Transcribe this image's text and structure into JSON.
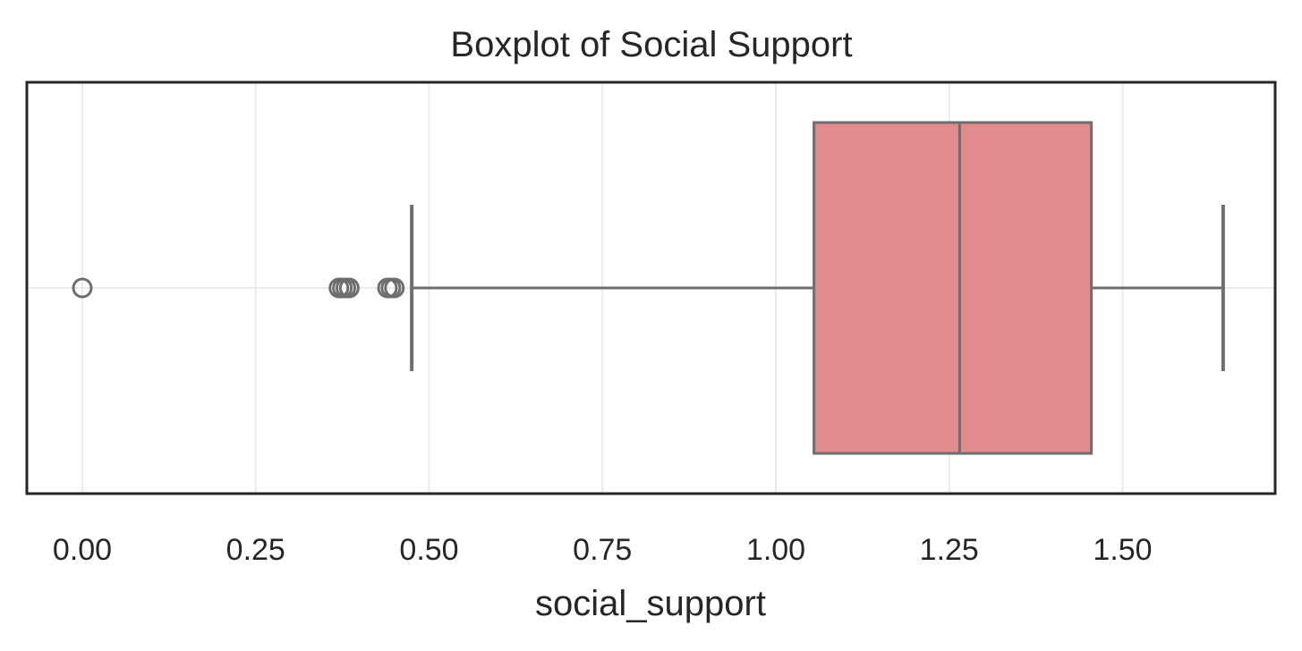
{
  "chart_data": {
    "type": "boxplot",
    "title": "Boxplot of Social Support",
    "xlabel": "social_support",
    "ylabel": "",
    "orientation": "horizontal",
    "xlim": [
      -0.08,
      1.72
    ],
    "xticks": [
      0.0,
      0.25,
      0.5,
      0.75,
      1.0,
      1.25,
      1.5
    ],
    "xtick_labels": [
      "0.00",
      "0.25",
      "0.50",
      "0.75",
      "1.00",
      "1.25",
      "1.50"
    ],
    "grid": true,
    "box": {
      "whisker_low": 0.475,
      "q1": 1.055,
      "median": 1.265,
      "q3": 1.455,
      "whisker_high": 1.645
    },
    "outliers": [
      0.0,
      0.37,
      0.375,
      0.38,
      0.385,
      0.44,
      0.445,
      0.45
    ],
    "colors": {
      "box_fill": "#e18b8f",
      "line": "#6e6e6e",
      "grid": "#ebebeb",
      "frame": "#262626"
    }
  }
}
